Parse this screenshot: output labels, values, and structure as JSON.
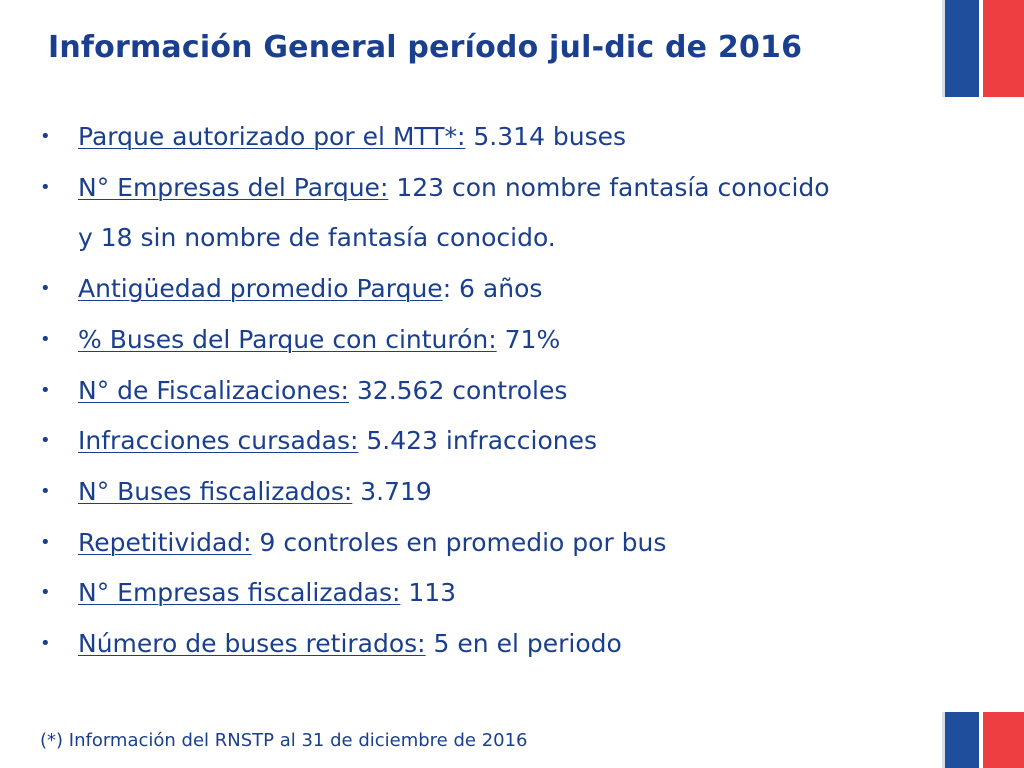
{
  "slide": {
    "title": "Información General período jul-dic de 2016",
    "items": [
      {
        "label": "Parque autorizado por el MTT*:",
        "value": " 5.314 buses"
      },
      {
        "label": "N° Empresas del Parque:",
        "value": " 123 con nombre fantasía conocido",
        "continuation": "y 18 sin nombre de fantasía conocido."
      },
      {
        "label": "Antigüedad promedio Parque",
        "value": ": 6 años"
      },
      {
        "label": "% Buses del Parque con cinturón:",
        "value": " 71%"
      },
      {
        "label": "N° de Fiscalizaciones:",
        "value": " 32.562 controles"
      },
      {
        "label": "Infracciones cursadas:",
        "value": " 5.423 infracciones"
      },
      {
        "label": "N° Buses fiscalizados:",
        "value": " 3.719"
      },
      {
        "label": "Repetitividad:",
        "value": " 9 controles en promedio por bus"
      },
      {
        "label": "N° Empresas fiscalizadas:",
        "value": " 113"
      },
      {
        "label": "Número de buses retirados:",
        "value": " 5 en el periodo"
      }
    ],
    "footnote": "(*) Información del RNSTP al 31 de diciembre de 2016"
  },
  "theme": {
    "text_color": "#1b3f8f",
    "flag_blue": "#1f4f9c",
    "flag_red": "#ef3e42"
  }
}
